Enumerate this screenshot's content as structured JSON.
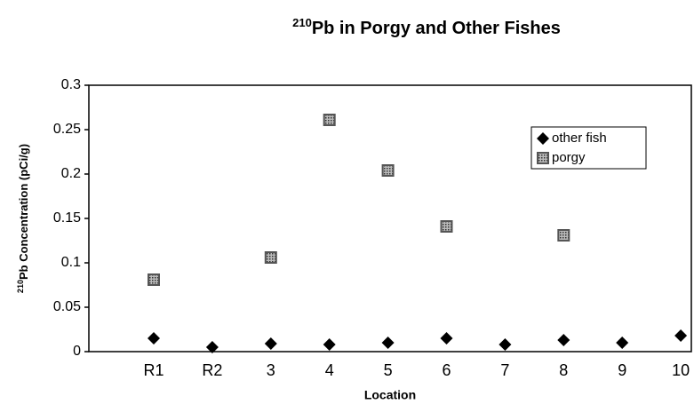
{
  "chart_data": {
    "type": "scatter",
    "title_superscript": "210",
    "title": "Pb in Porgy and Other Fishes",
    "y_label_superscript": "210",
    "y_label": "Pb Concentration (pCi/g)",
    "x_label": "Location",
    "categories": [
      "R1",
      "R2",
      "3",
      "4",
      "5",
      "6",
      "7",
      "8",
      "9",
      "10"
    ],
    "series": [
      {
        "name": "other fish",
        "color": "#000000",
        "marker": "diamond",
        "values": [
          0.015,
          0.005,
          0.009,
          0.008,
          0.01,
          0.015,
          0.008,
          0.013,
          0.01,
          0.018
        ]
      },
      {
        "name": "porgy",
        "color": "#555555",
        "marker": "square",
        "values": [
          0.081,
          null,
          0.106,
          0.261,
          0.204,
          0.141,
          null,
          0.131,
          null,
          null
        ]
      }
    ],
    "ylim": [
      0,
      0.3
    ],
    "yticks": [
      0,
      0.05,
      0.1,
      0.15,
      0.2,
      0.25,
      0.3
    ],
    "grid": false,
    "legend": "upper right"
  }
}
